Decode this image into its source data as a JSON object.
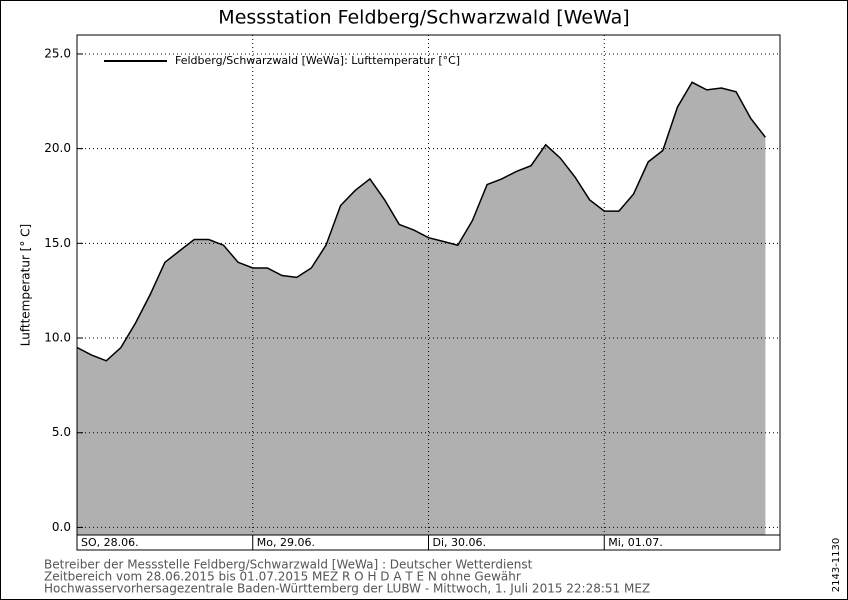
{
  "chart_data": {
    "type": "area",
    "title": "Messstation Feldberg/Schwarzwald [WeWa]",
    "ylabel": "Lufttemperatur [° C]",
    "series": [
      {
        "name": "Feldberg/Schwarzwald [WeWa]: Lufttemperatur [°C]",
        "color": "#000000",
        "fill": "#b0b0b0",
        "x": [
          0,
          2,
          4,
          6,
          8,
          10,
          12,
          14,
          16,
          18,
          20,
          22,
          24,
          26,
          28,
          30,
          32,
          34,
          36,
          38,
          40,
          42,
          44,
          46,
          48,
          50,
          52,
          54,
          56,
          58,
          60,
          62,
          64,
          66,
          68,
          70,
          72,
          74,
          76,
          78,
          80,
          82,
          84,
          86,
          88,
          90,
          92,
          94
        ],
        "values": [
          9.5,
          9.1,
          8.8,
          9.5,
          10.8,
          12.3,
          14.0,
          14.6,
          15.2,
          15.2,
          14.9,
          14.0,
          13.7,
          13.7,
          13.3,
          13.2,
          13.7,
          14.9,
          17.0,
          17.8,
          18.4,
          17.3,
          16.0,
          15.7,
          15.3,
          15.1,
          14.9,
          16.2,
          18.1,
          18.4,
          18.8,
          19.1,
          20.2,
          19.5,
          18.5,
          17.3,
          16.7,
          16.7,
          17.6,
          19.3,
          19.9,
          22.2,
          23.5,
          23.1,
          23.2,
          23.0,
          21.6,
          20.6
        ]
      }
    ],
    "xlim": [
      0,
      96
    ],
    "xticks": [
      {
        "value": 0,
        "label": "SO, 28.06."
      },
      {
        "value": 24,
        "label": "Mo, 29.06."
      },
      {
        "value": 48,
        "label": "Di, 30.06."
      },
      {
        "value": 72,
        "label": "Mi, 01.07."
      }
    ],
    "ylim": [
      -0.4,
      26
    ],
    "yticks": [
      {
        "value": 0,
        "label": "0.0"
      },
      {
        "value": 5,
        "label": "5.0"
      },
      {
        "value": 10,
        "label": "10.0"
      },
      {
        "value": 15,
        "label": "15.0"
      },
      {
        "value": 20,
        "label": "20.0"
      },
      {
        "value": 25,
        "label": "25.0"
      }
    ],
    "grid": true,
    "legend": "upper left",
    "footer": [
      "Betreiber der Messstelle Feldberg/Schwarzwald [WeWa] : Deutscher Wetterdienst",
      "Zeitbereich vom 28.06.2015 bis 01.07.2015    MEZ    R O H D A T E N ohne Gewähr",
      "Hochwasservorhersagezentrale Baden-Württemberg der LUBW - Mittwoch, 1. Juli 2015 22:28:51 MEZ"
    ],
    "side_note": "2143-1130"
  }
}
